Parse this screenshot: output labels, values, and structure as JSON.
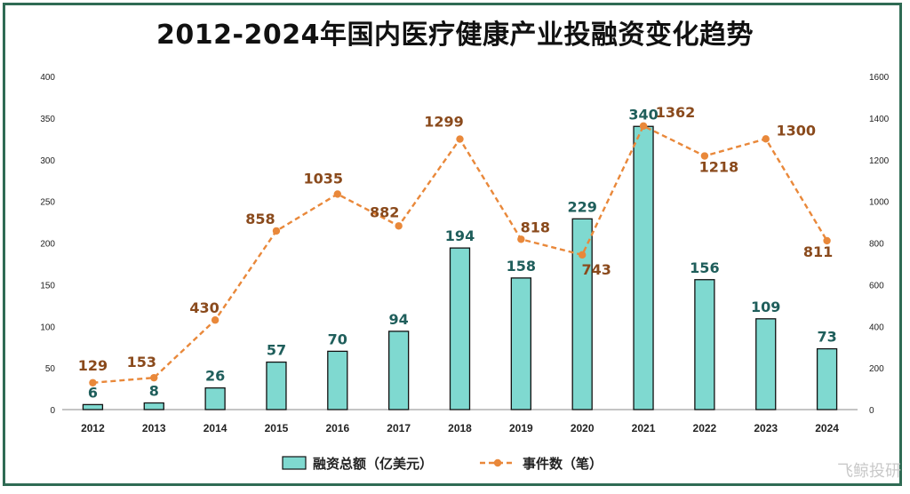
{
  "chart_data": {
    "type": "bar",
    "title": "2012-2024年国内医疗健康产业投融资变化趋势",
    "categories": [
      "2012",
      "2013",
      "2014",
      "2015",
      "2016",
      "2017",
      "2018",
      "2019",
      "2020",
      "2021",
      "2022",
      "2023",
      "2024"
    ],
    "series": [
      {
        "name": "融资总额（亿美元）",
        "type": "bar",
        "axis": "left",
        "values": [
          6,
          8,
          26,
          57,
          70,
          94,
          194,
          158,
          229,
          340,
          156,
          109,
          73
        ]
      },
      {
        "name": "事件数（笔）",
        "type": "line",
        "axis": "right",
        "values": [
          129,
          153,
          430,
          858,
          1035,
          882,
          1299,
          818,
          743,
          1362,
          1218,
          1300,
          811
        ]
      }
    ],
    "ylim": [
      0,
      400
    ],
    "y2lim": [
      0,
      1600
    ],
    "yticks": [
      0,
      50,
      100,
      150,
      200,
      250,
      300,
      350,
      400
    ],
    "y2ticks": [
      0,
      200,
      400,
      600,
      800,
      1000,
      1200,
      1400,
      1600
    ],
    "grid": false,
    "legend": "bottom",
    "colors": {
      "bar_fill": "#7fd9d0",
      "bar_stroke": "#111111",
      "line": "#e9883a",
      "bar_label": "#1f5e5b",
      "line_label": "#8a4a1c",
      "frame": "#2f6b54"
    }
  },
  "watermark": "飞鲸投研"
}
